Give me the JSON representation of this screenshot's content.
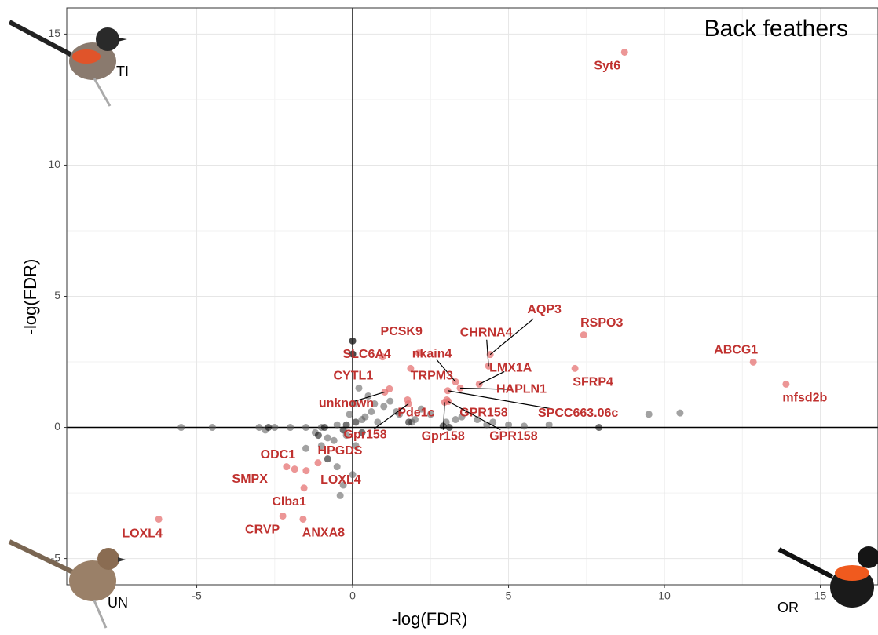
{
  "chart_data": {
    "type": "scatter",
    "title": "Back feathers",
    "x_label": "-log(FDR)",
    "y_label": "-log(FDR)",
    "corner_labels": [
      "TI",
      "UN",
      "OR"
    ],
    "xlim": [
      -9.17,
      16.85
    ],
    "ylim": [
      -6.0,
      16.0
    ],
    "xticks": [
      -5,
      0,
      5,
      10,
      15
    ],
    "yticks": [
      -5,
      0,
      5,
      10,
      15
    ],
    "grid": true,
    "series": [
      {
        "color": "#555555",
        "x": [
          -5.5,
          -4.5,
          -3,
          -2.5,
          -2,
          -1.5,
          -1,
          -0.5,
          0,
          0,
          0.2,
          0.5,
          1,
          1.5,
          2,
          2.5,
          3,
          3.5,
          4,
          4.5,
          5,
          6.3,
          9.5,
          10.5,
          -1.5,
          -1,
          -0.5,
          -0.3,
          -0.4,
          0,
          -0.2,
          0.3,
          0.6,
          0.8,
          -0.6,
          1.2,
          1.9,
          -2.8,
          0.1,
          0.05,
          -0.1,
          2.2,
          3.3,
          4.3,
          5.5,
          0.4,
          0.7,
          1.4,
          -0.8,
          -1.2
        ],
        "values": [
          0,
          0,
          0,
          0,
          0,
          0,
          0,
          0.1,
          3.3,
          2.8,
          1.5,
          1.2,
          0.8,
          0.5,
          0.3,
          0.5,
          0.2,
          0.4,
          0.3,
          0.2,
          0.1,
          0.1,
          0.5,
          0.55,
          -0.8,
          -0.7,
          -1.5,
          -2.2,
          -2.6,
          -1.8,
          -0.3,
          0.3,
          0.6,
          0.2,
          -0.5,
          1.0,
          0.2,
          -0.1,
          -0.7,
          0.9,
          0.5,
          0.7,
          0.3,
          0.1,
          0.05,
          0.4,
          0.9,
          0.6,
          -0.4,
          -0.2
        ]
      },
      {
        "color": "#000000",
        "x": [
          -2.7,
          -1.1,
          -0.9,
          0.1,
          -0.3,
          2.9,
          3.1,
          7.9,
          -0.8,
          -0.2,
          0.3,
          0,
          0,
          1.8
        ],
        "values": [
          0,
          -0.3,
          0,
          0.2,
          -0.1,
          0.05,
          0,
          0,
          -1.2,
          0.1,
          -0.2,
          3.3,
          2.8,
          0.2
        ]
      },
      {
        "color": "#e57373",
        "x": [
          8.72,
          7.41,
          12.85,
          13.9,
          7.13,
          4.41,
          4.36,
          4.06,
          3.45,
          3.3,
          2.12,
          0.96,
          1.86,
          1.18,
          1.03,
          1.76,
          3.05,
          3.02,
          1.79,
          2.95,
          3.07,
          -2.12,
          -1.11,
          -1.86,
          -1.49,
          -1.56,
          -2.24,
          -1.59,
          -6.22
        ],
        "values": [
          14.31,
          3.53,
          2.49,
          1.65,
          2.25,
          2.78,
          2.34,
          1.65,
          1.5,
          1.74,
          2.84,
          2.69,
          2.25,
          1.47,
          1.35,
          1.05,
          1.4,
          1.05,
          0.9,
          0.96,
          0.99,
          -1.5,
          -1.35,
          -1.59,
          -1.65,
          -2.31,
          -3.38,
          -3.5,
          -3.5
        ],
        "labels": [
          "Syt6",
          "RSPO3",
          "ABCG1",
          "mfsd2b",
          "SFRP4",
          "AQP3",
          "CHRNA4",
          "LMX1A",
          "HAPLN1",
          "nkain4",
          "PCSK9",
          "SLC6A4",
          "TRPM3",
          "CYTL1",
          "unknown",
          "Pde1c",
          "SPCC663.06c",
          "GPR158",
          "Gpr158",
          "Gpr158",
          "GPR158",
          "ODC1",
          "HPGDS",
          "SMPX",
          "LOXL4",
          "Clba1",
          "CRVP",
          "ANXA8",
          "LOXL4"
        ],
        "label_color": "#c0312f"
      }
    ]
  }
}
